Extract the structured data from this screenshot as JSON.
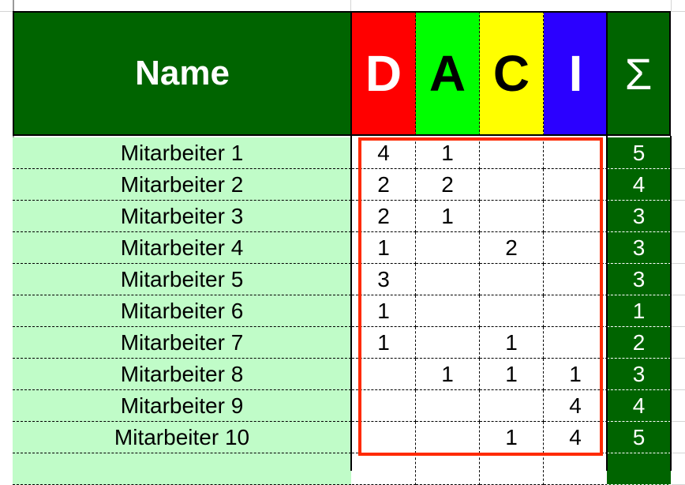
{
  "header": {
    "name": "Name",
    "roles": [
      {
        "letter": "D",
        "color": "#ff0000",
        "text": "#ffffff"
      },
      {
        "letter": "A",
        "color": "#00ff00",
        "text": "#000000"
      },
      {
        "letter": "C",
        "color": "#ffff00",
        "text": "#000000"
      },
      {
        "letter": "I",
        "color": "#2b00ff",
        "text": "#ffffff"
      }
    ],
    "sum": "Σ"
  },
  "colors": {
    "header_green": "#006400",
    "name_bg": "#c0fcc8",
    "highlight": "#ff2a00"
  },
  "rows": [
    {
      "name": "Mitarbeiter 1",
      "values": [
        "4",
        "1",
        "",
        ""
      ],
      "sum": "5"
    },
    {
      "name": "Mitarbeiter 2",
      "values": [
        "2",
        "2",
        "",
        ""
      ],
      "sum": "4"
    },
    {
      "name": "Mitarbeiter 3",
      "values": [
        "2",
        "1",
        "",
        ""
      ],
      "sum": "3"
    },
    {
      "name": "Mitarbeiter 4",
      "values": [
        "1",
        "",
        "2",
        ""
      ],
      "sum": "3"
    },
    {
      "name": "Mitarbeiter 5",
      "values": [
        "3",
        "",
        "",
        ""
      ],
      "sum": "3"
    },
    {
      "name": "Mitarbeiter 6",
      "values": [
        "1",
        "",
        "",
        ""
      ],
      "sum": "1"
    },
    {
      "name": "Mitarbeiter 7",
      "values": [
        "1",
        "",
        "1",
        ""
      ],
      "sum": "2"
    },
    {
      "name": "Mitarbeiter 8",
      "values": [
        "",
        "1",
        "1",
        "1"
      ],
      "sum": "3"
    },
    {
      "name": "Mitarbeiter 9",
      "values": [
        "",
        "",
        "",
        "4"
      ],
      "sum": "4"
    },
    {
      "name": "Mitarbeiter 10",
      "values": [
        "",
        "",
        "1",
        "4"
      ],
      "sum": "5"
    }
  ]
}
